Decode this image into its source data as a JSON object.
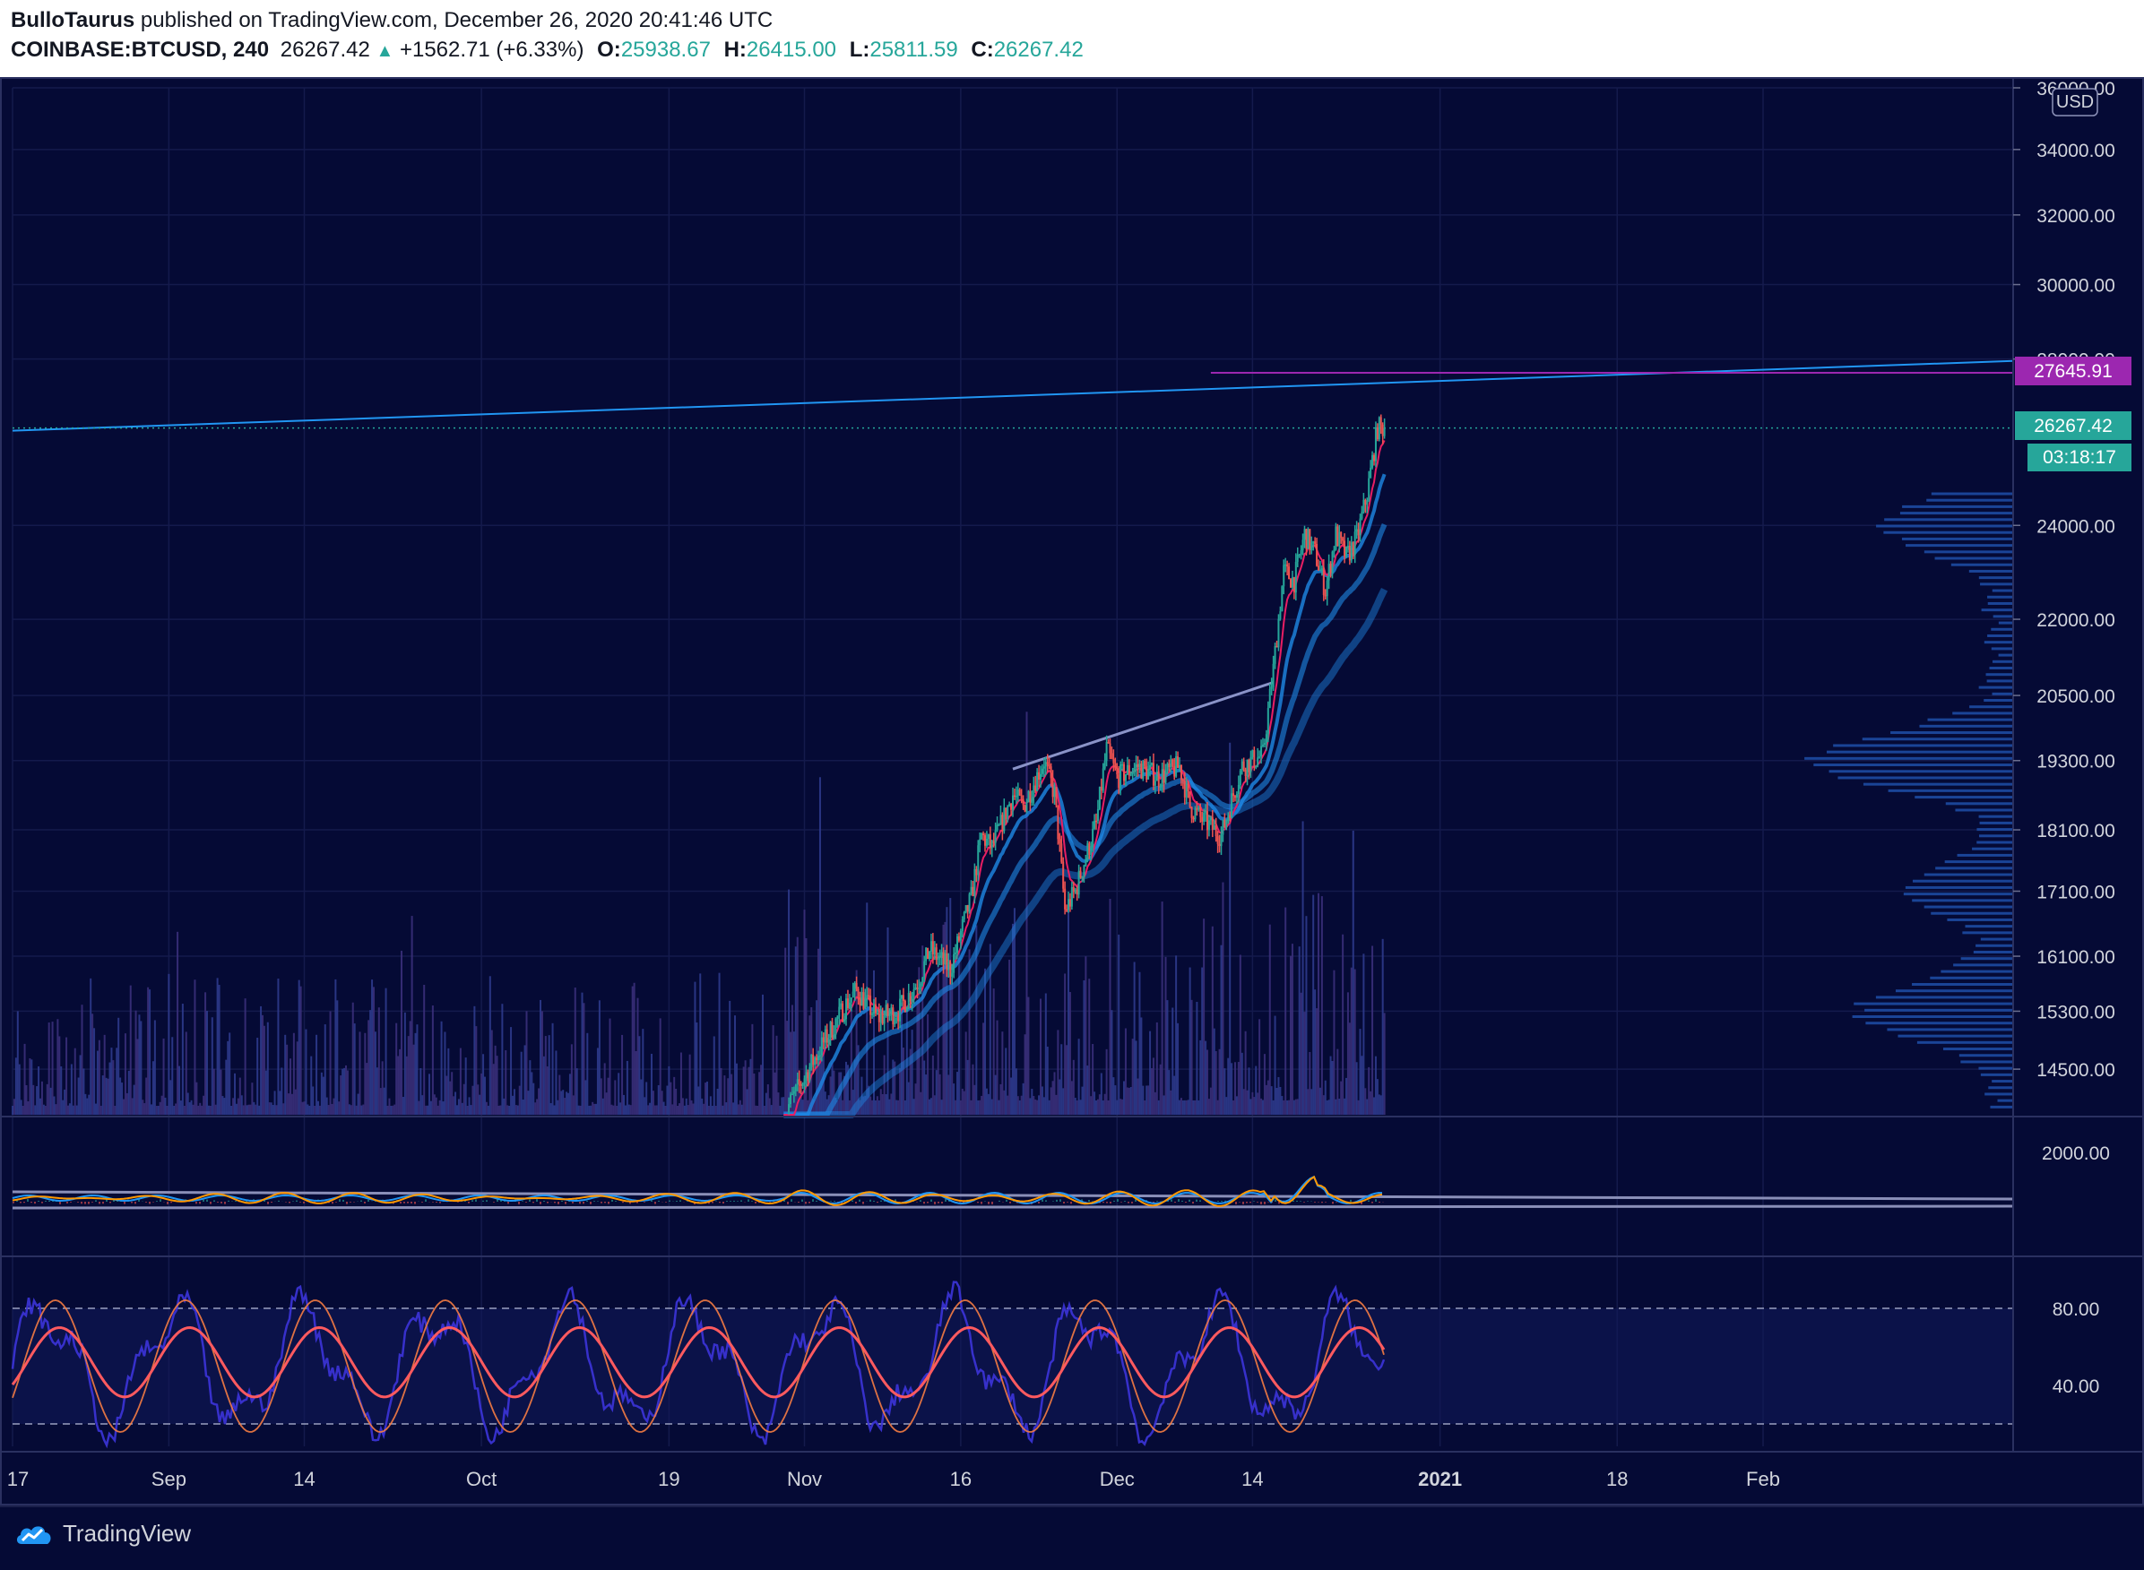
{
  "header": {
    "author": "BulloTaurus",
    "published_text": "published on TradingView.com, December 26, 2020 20:41:46 UTC",
    "symbol": "COINBASE:BTCUSD, 240",
    "last_price": "26267.42",
    "change": "+1562.71 (+6.33%)",
    "o_label": "O:",
    "o_value": "25938.67",
    "h_label": "H:",
    "h_value": "26415.00",
    "l_label": "L:",
    "l_value": "25811.59",
    "c_label": "C:",
    "c_value": "26267.42"
  },
  "footer": {
    "brand": "TradingView"
  },
  "colors": {
    "background": "#050a35",
    "grid": "#141a4c",
    "up": "#26a69a",
    "down": "#ef5350",
    "trendline": "#2196f3",
    "hline": "#9c27b0",
    "ema_fast": "#e91e63",
    "ema_slow": "#1e88e5",
    "volume_profile": "#1e4fa8",
    "macd_line": "#2196f3",
    "signal_line": "#ff9800",
    "stoch_k": "#3c34d9",
    "stoch_d": "#ff5a5f",
    "rsi": "#f57c42"
  },
  "price_axis": {
    "currency": "USD",
    "ticks": [
      "36000.00",
      "34000.00",
      "32000.00",
      "30000.00",
      "28000.00",
      "24000.00",
      "22000.00",
      "20500.00",
      "19300.00",
      "18100.00",
      "17100.00",
      "16100.00",
      "15300.00",
      "14500.00"
    ],
    "price_label": "26267.42",
    "countdown": "03:18:17",
    "hline_label": "27645.91"
  },
  "macd_axis": {
    "ticks": [
      "2000.00"
    ]
  },
  "osc_axis": {
    "ticks": [
      "80.00",
      "40.00"
    ]
  },
  "time_axis": {
    "labels": [
      "17",
      "Sep",
      "14",
      "Oct",
      "19",
      "Nov",
      "16",
      "Dec",
      "14",
      "2021",
      "18",
      "Feb"
    ]
  },
  "chart_data": {
    "type": "candlestick",
    "symbol": "COINBASE:BTCUSD",
    "interval": "240",
    "log_scale": true,
    "ylim": [
      13900,
      36000
    ],
    "x_range": [
      "2020-08-17",
      "2021-02-25"
    ],
    "last_close": 26267.42,
    "horizontal_line": 27645.91,
    "long_trendline": {
      "points": [
        [
          "2020-08-17",
          26200
        ],
        [
          "2021-02-25",
          27950
        ]
      ]
    },
    "resistance_line": {
      "points": [
        [
          "2020-11-21",
          19150
        ],
        [
          "2020-12-16",
          20750
        ]
      ]
    },
    "price_path": [
      [
        "2020-10-30",
        13900
      ],
      [
        "2020-11-05",
        15400
      ],
      [
        "2020-11-06",
        15600
      ],
      [
        "2020-11-08",
        15200
      ],
      [
        "2020-11-10",
        15300
      ],
      [
        "2020-11-12",
        15750
      ],
      [
        "2020-11-13",
        16200
      ],
      [
        "2020-11-15",
        15900
      ],
      [
        "2020-11-17",
        17000
      ],
      [
        "2020-11-18",
        18000
      ],
      [
        "2020-11-19",
        17800
      ],
      [
        "2020-11-21",
        18700
      ],
      [
        "2020-11-22",
        18500
      ],
      [
        "2020-11-24",
        19300
      ],
      [
        "2020-11-25",
        18700
      ],
      [
        "2020-11-26",
        16800
      ],
      [
        "2020-11-27",
        17100
      ],
      [
        "2020-11-29",
        18200
      ],
      [
        "2020-11-30",
        19500
      ],
      [
        "2020-12-01",
        19000
      ],
      [
        "2020-12-03",
        19200
      ],
      [
        "2020-12-05",
        19000
      ],
      [
        "2020-12-07",
        19200
      ],
      [
        "2020-12-08",
        18500
      ],
      [
        "2020-12-09",
        18300
      ],
      [
        "2020-12-11",
        18000
      ],
      [
        "2020-12-13",
        19200
      ],
      [
        "2020-12-15",
        19400
      ],
      [
        "2020-12-16",
        21000
      ],
      [
        "2020-12-17",
        23000
      ],
      [
        "2020-12-18",
        22800
      ],
      [
        "2020-12-19",
        23800
      ],
      [
        "2020-12-20",
        23400
      ],
      [
        "2020-12-21",
        22600
      ],
      [
        "2020-12-22",
        23800
      ],
      [
        "2020-12-23",
        23300
      ],
      [
        "2020-12-24",
        23700
      ],
      [
        "2020-12-25",
        24700
      ],
      [
        "2020-12-26",
        26267
      ]
    ],
    "volume_profile_peaks": [
      24000,
      19300,
      17100,
      15300
    ]
  }
}
